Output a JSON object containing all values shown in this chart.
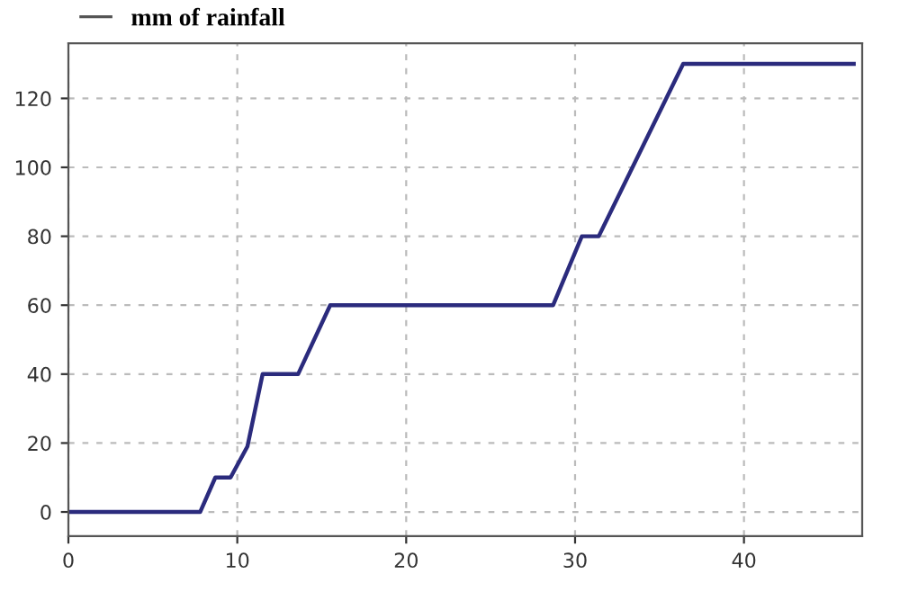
{
  "chart_data": {
    "type": "line",
    "x": [
      0,
      7.8,
      8.7,
      9.6,
      10.6,
      11.5,
      13.6,
      15.5,
      28.7,
      30.4,
      31.4,
      36.4,
      46.5
    ],
    "series": [
      {
        "name": "mm of rainfall",
        "color": "#2b2b7d",
        "values": [
          0,
          0,
          10,
          10,
          19,
          40,
          40,
          60,
          60,
          80,
          80,
          130,
          130
        ]
      }
    ],
    "xlim": [
      0,
      47
    ],
    "ylim": [
      -7,
      136
    ],
    "xticks": [
      0,
      10,
      20,
      30,
      40
    ],
    "yticks": [
      0,
      20,
      40,
      60,
      80,
      100,
      120
    ],
    "grid": true,
    "legend": "top left",
    "marker": "none",
    "line_style": "solid"
  }
}
